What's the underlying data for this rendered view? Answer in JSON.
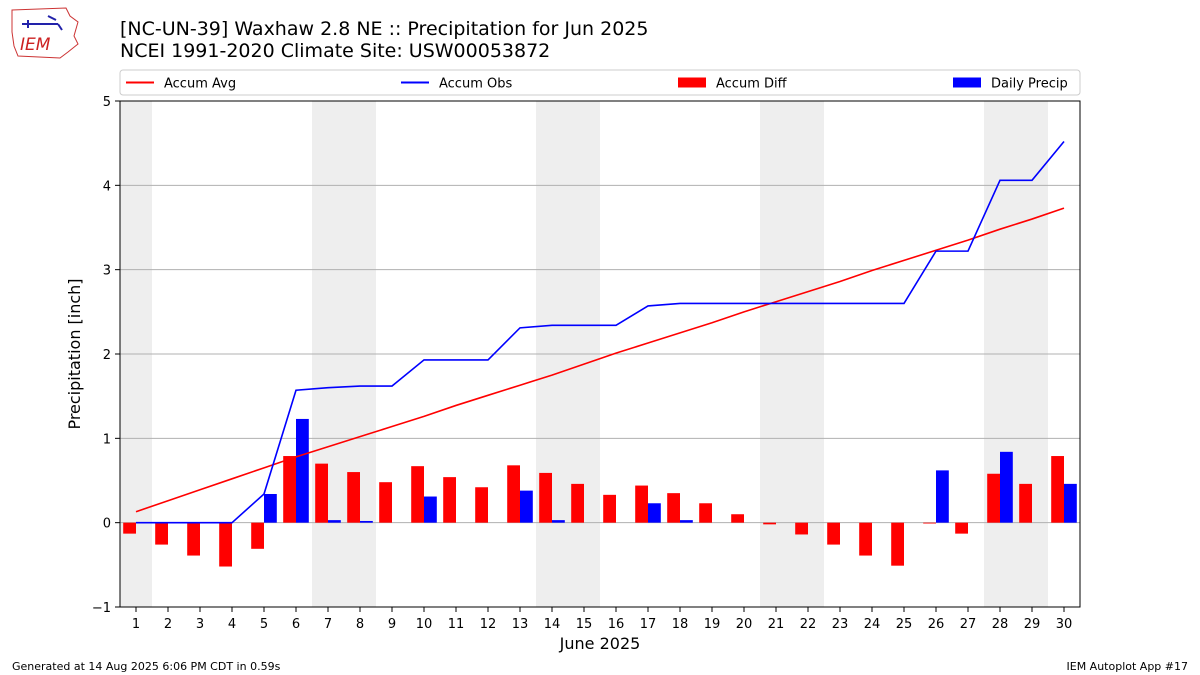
{
  "title": {
    "line1": "[NC-UN-39] Waxhaw 2.8 NE :: Precipitation for Jun 2025",
    "line2": "NCEI 1991-2020 Climate Site: USW00053872"
  },
  "logo": {
    "text": "IEM",
    "icon": "iem-iowa-logo-icon"
  },
  "footer": {
    "left": "Generated at 14 Aug 2025 6:06 PM CDT in 0.59s",
    "right": "IEM Autoplot App #17"
  },
  "legend": {
    "placement": "top",
    "items": [
      "Accum Avg",
      "Accum Obs",
      "Accum Diff",
      "Daily Precip"
    ]
  },
  "colors": {
    "accum_avg": "#ff0000",
    "accum_obs": "#0000ff",
    "accum_diff": "#ff0000",
    "daily_precip": "#0000ff",
    "weekend_shade": "#eeeeee",
    "grid": "#b0b0b0"
  },
  "chart_data": {
    "type": "bar",
    "xlabel": "June 2025",
    "ylabel": "Precipitation [inch]",
    "xlim": [
      0.5,
      30.5
    ],
    "ylim": [
      -1.0,
      5.0
    ],
    "yticks": [
      -1,
      0,
      1,
      2,
      3,
      4,
      5
    ],
    "grid": true,
    "x": [
      1,
      2,
      3,
      4,
      5,
      6,
      7,
      8,
      9,
      10,
      11,
      12,
      13,
      14,
      15,
      16,
      17,
      18,
      19,
      20,
      21,
      22,
      23,
      24,
      25,
      26,
      27,
      28,
      29,
      30
    ],
    "shaded_days": [
      [
        0.5,
        1.5
      ],
      [
        6.5,
        8.5
      ],
      [
        13.5,
        15.5
      ],
      [
        20.5,
        22.5
      ],
      [
        27.5,
        29.5
      ]
    ],
    "series": [
      {
        "name": "Accum Avg",
        "kind": "line",
        "values": [
          0.13,
          0.26,
          0.39,
          0.52,
          0.65,
          0.78,
          0.9,
          1.02,
          1.14,
          1.26,
          1.39,
          1.51,
          1.63,
          1.75,
          1.88,
          2.01,
          2.13,
          2.25,
          2.37,
          2.5,
          2.62,
          2.74,
          2.86,
          2.99,
          3.11,
          3.23,
          3.35,
          3.48,
          3.6,
          3.73
        ]
      },
      {
        "name": "Accum Obs",
        "kind": "line",
        "values": [
          0.0,
          0.0,
          0.0,
          0.0,
          0.34,
          1.57,
          1.6,
          1.62,
          1.62,
          1.93,
          1.93,
          1.93,
          2.31,
          2.34,
          2.34,
          2.34,
          2.57,
          2.6,
          2.6,
          2.6,
          2.6,
          2.6,
          2.6,
          2.6,
          2.6,
          3.22,
          3.22,
          4.06,
          4.06,
          4.52
        ]
      },
      {
        "name": "Accum Diff",
        "kind": "bar",
        "values": [
          -0.13,
          -0.26,
          -0.39,
          -0.52,
          -0.31,
          0.79,
          0.7,
          0.6,
          0.48,
          0.67,
          0.54,
          0.42,
          0.68,
          0.59,
          0.46,
          0.33,
          0.44,
          0.35,
          0.23,
          0.1,
          -0.02,
          -0.14,
          -0.26,
          -0.39,
          -0.51,
          -0.01,
          -0.13,
          0.58,
          0.46,
          0.79
        ]
      },
      {
        "name": "Daily Precip",
        "kind": "bar",
        "values": [
          0.0,
          0.0,
          0.0,
          0.0,
          0.34,
          1.23,
          0.03,
          0.02,
          0.0,
          0.31,
          0.0,
          0.0,
          0.38,
          0.03,
          0.0,
          0.0,
          0.23,
          0.03,
          0.0,
          0.0,
          0.0,
          0.0,
          0.0,
          0.0,
          0.0,
          0.62,
          0.0,
          0.84,
          0.0,
          0.46
        ]
      }
    ]
  }
}
